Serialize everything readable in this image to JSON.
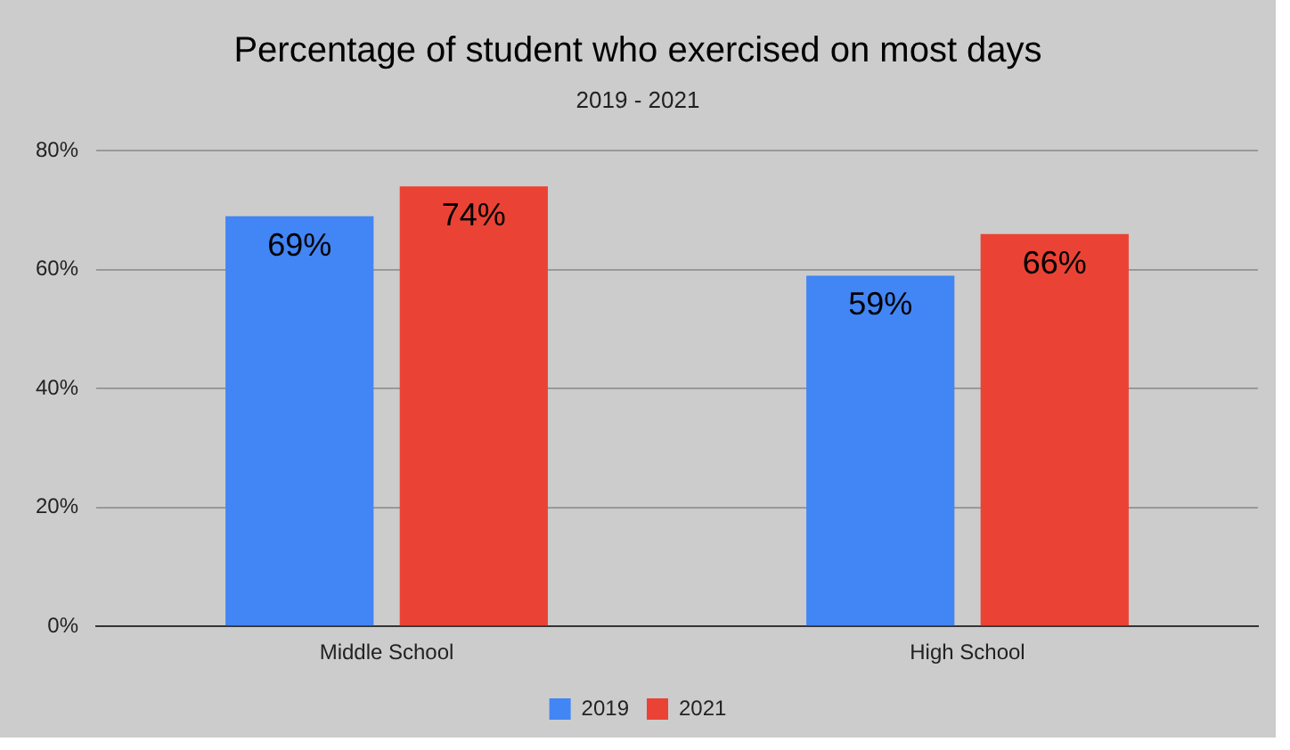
{
  "chart_data": {
    "type": "bar",
    "title": "Percentage of student who exercised on most days",
    "subtitle": "2019 - 2021",
    "categories": [
      "Middle School",
      "High School"
    ],
    "series": [
      {
        "name": "2019",
        "color": "#4285f4",
        "values": [
          69,
          59
        ],
        "value_labels": [
          "69%",
          "59%"
        ]
      },
      {
        "name": "2021",
        "color": "#ea4335",
        "values": [
          74,
          66
        ],
        "value_labels": [
          "74%",
          "66%"
        ]
      }
    ],
    "ylim": [
      0,
      80
    ],
    "yticks": [
      {
        "value": 0,
        "label": "0%"
      },
      {
        "value": 20,
        "label": "20%"
      },
      {
        "value": 40,
        "label": "40%"
      },
      {
        "value": 60,
        "label": "60%"
      },
      {
        "value": 80,
        "label": "80%"
      }
    ],
    "grid": "y",
    "legend": "bottom"
  }
}
